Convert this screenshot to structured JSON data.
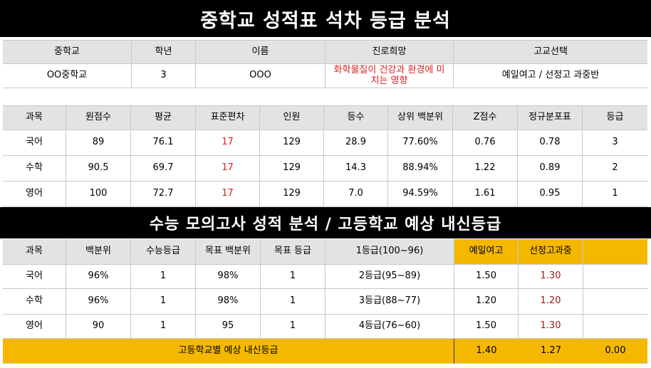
{
  "title": "중학교 성적표 석차 등급 분석",
  "info": {
    "headers": [
      "중학교",
      "학년",
      "이름",
      "진로희망",
      "고교선택"
    ],
    "values": [
      "OO중학교",
      "3",
      "OOO",
      "화학물질이 건강과 환경에 미치는 영향",
      "예일여고 / 선정고 과중반"
    ]
  },
  "grades": {
    "headers": [
      "과목",
      "원점수",
      "평균",
      "표준편차",
      "인원",
      "등수",
      "상위 백분위",
      "Z점수",
      "정규분포표",
      "등급"
    ],
    "rows": [
      [
        "국어",
        "89",
        "76.1",
        "17",
        "129",
        "28.9",
        "77.60%",
        "0.76",
        "0.78",
        "3"
      ],
      [
        "수학",
        "90.5",
        "69.7",
        "17",
        "129",
        "14.3",
        "88.94%",
        "1.22",
        "0.89",
        "2"
      ],
      [
        "영어",
        "100",
        "72.7",
        "17",
        "129",
        "7.0",
        "94.59%",
        "1.61",
        "0.95",
        "1"
      ]
    ]
  },
  "section2_title": "수능 모의고사 성적 분석 / 고등학교 예상 내신등급",
  "mock": {
    "headers": [
      "과목",
      "백분위",
      "수능등급",
      "목표 백분위",
      "목표 등급",
      "1등급(100~96)",
      "예일여고",
      "선정고과중",
      ""
    ],
    "rows": [
      [
        "국어",
        "96%",
        "1",
        "98%",
        "1",
        "2등급(95~89)",
        "1.50",
        "1.30",
        ""
      ],
      [
        "수학",
        "96%",
        "1",
        "98%",
        "1",
        "3등급(88~77)",
        "1.20",
        "1.20",
        ""
      ],
      [
        "영어",
        "90",
        "1",
        "95",
        "1",
        "4등급(76~60)",
        "1.50",
        "1.30",
        ""
      ]
    ],
    "footer": {
      "label": "고등학교별 예상 내신등급",
      "values": [
        "1.40",
        "1.27",
        "0.00"
      ]
    }
  },
  "colors": {
    "header_bg": "#e3e3e3",
    "accent_gold": "#f5b800",
    "red_text": "#d92020",
    "title_bg": "#000000"
  }
}
